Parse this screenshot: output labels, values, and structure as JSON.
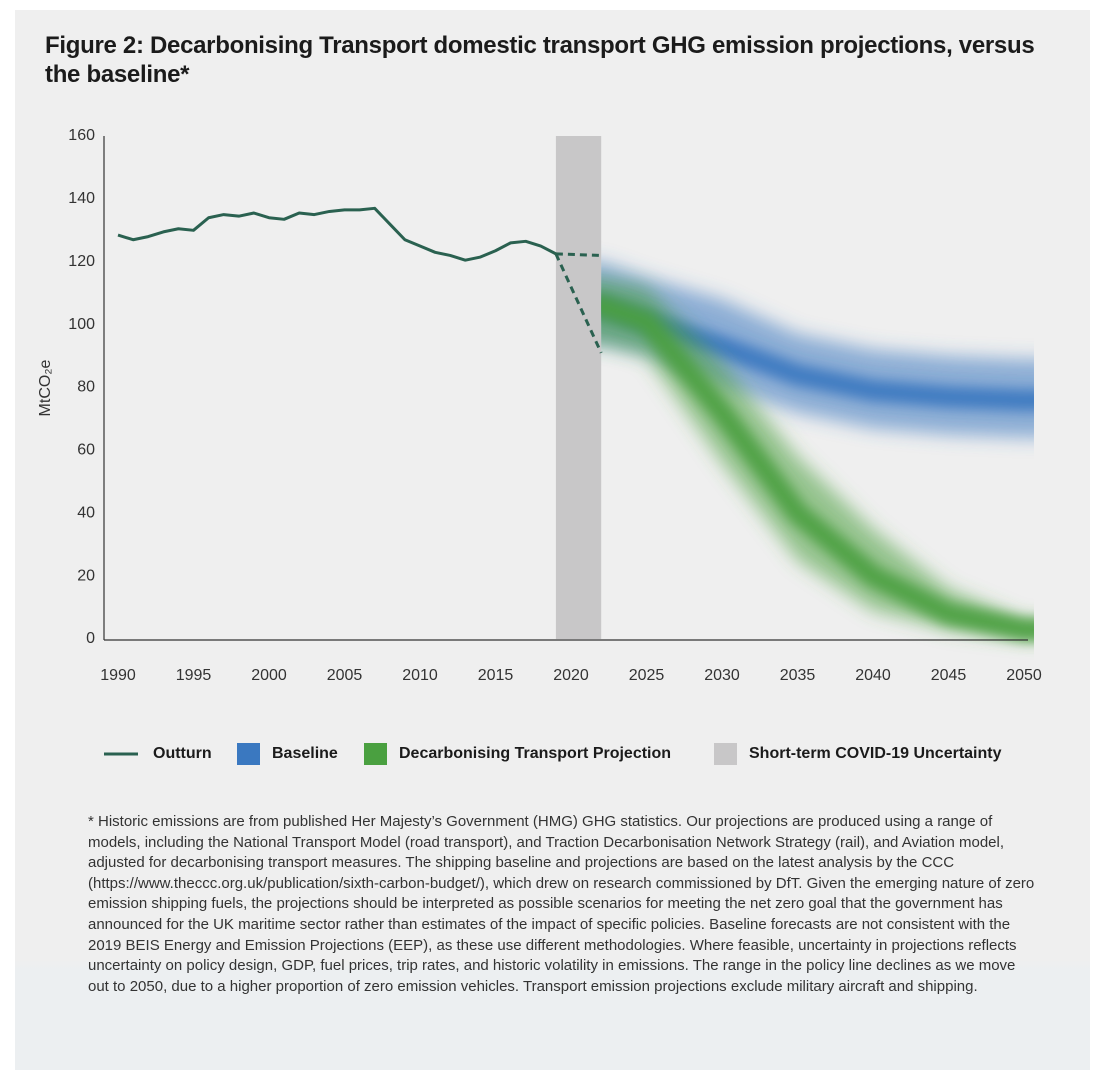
{
  "chart_data": {
    "type": "line",
    "title": "Figure 2: Decarbonising Transport domestic transport GHG emission projections, versus the baseline*",
    "ylabel": "MtCO₂e",
    "xlim": [
      1990,
      2050
    ],
    "xticks": [
      1990,
      1995,
      2000,
      2005,
      2010,
      2015,
      2020,
      2025,
      2030,
      2035,
      2040,
      2045,
      2050
    ],
    "ylim": [
      0,
      160
    ],
    "yticks": [
      0,
      20,
      40,
      60,
      80,
      100,
      120,
      140,
      160
    ],
    "series": [
      {
        "name": "Outturn",
        "color": "#2a6150",
        "x": [
          1990,
          1991,
          1992,
          1993,
          1994,
          1995,
          1996,
          1997,
          1998,
          1999,
          2000,
          2001,
          2002,
          2003,
          2004,
          2005,
          2006,
          2007,
          2008,
          2009,
          2010,
          2011,
          2012,
          2013,
          2014,
          2015,
          2016,
          2017,
          2018,
          2019
        ],
        "values": [
          128.5,
          127,
          128,
          129.5,
          130.5,
          130,
          134,
          135,
          134.5,
          135.5,
          134,
          133.5,
          135.5,
          135,
          136,
          136.5,
          136.5,
          137,
          132,
          127,
          125,
          123,
          122,
          120.5,
          121.5,
          123.5,
          126,
          126.5,
          125,
          122.5
        ]
      }
    ],
    "covid_paths": [
      {
        "color": "#2a6150",
        "x": [
          2019,
          2022
        ],
        "values": [
          122.5,
          122
        ]
      },
      {
        "color": "#2a6150",
        "x": [
          2019,
          2022
        ],
        "values": [
          122.5,
          91
        ]
      }
    ],
    "bands": [
      {
        "name": "Baseline",
        "color": "#3a78c0",
        "x": [
          2022,
          2025,
          2030,
          2035,
          2040,
          2045,
          2050
        ],
        "values": [
          106,
          101,
          93,
          84,
          79,
          77,
          76
        ],
        "upper": [
          120,
          115,
          108,
          97,
          92,
          90,
          89
        ],
        "lower": [
          94,
          91,
          80,
          72,
          67,
          65,
          64
        ]
      },
      {
        "name": "Decarbonising Transport Projection",
        "color": "#4aa040",
        "x": [
          2022,
          2025,
          2030,
          2035,
          2040,
          2045,
          2050
        ],
        "values": [
          106,
          101,
          72,
          40,
          20,
          8,
          3
        ],
        "upper": [
          115,
          112,
          88,
          58,
          35,
          16,
          6
        ],
        "lower": [
          94,
          90,
          56,
          25,
          9,
          3,
          0
        ]
      }
    ],
    "covid": {
      "name": "Short-term COVID-19 Uncertainty",
      "color": "#c8c7c8",
      "x_range": [
        2019,
        2022
      ]
    },
    "footnote": "* Historic emissions are from published Her Majesty’s Government (HMG) GHG statistics. Our projections are produced using a range of models, including the National Transport Model (road transport), and Traction Decarbonisation Network Strategy (rail), and Aviation model, adjusted for decarbonising transport measures. The shipping baseline and projections are based on the latest analysis by the CCC (https://www.theccc.org.uk/publication/sixth-carbon-budget/), which drew on research commissioned by DfT. Given the emerging nature of zero emission shipping fuels, the projections should be interpreted as possible scenarios for meeting the net zero goal that the government has announced for the UK maritime sector rather than estimates of the impact of specific policies. Baseline forecasts are not consistent with the 2019 BEIS Energy and Emission Projections (EEP), as these use different methodologies. Where feasible, uncertainty in projections reflects uncertainty on policy design, GDP, fuel prices, trip rates, and historic volatility in emissions. The range in the policy line declines as we move out to 2050, due to a higher proportion of zero emission vehicles. Transport emission projections exclude military aircraft and shipping."
  }
}
